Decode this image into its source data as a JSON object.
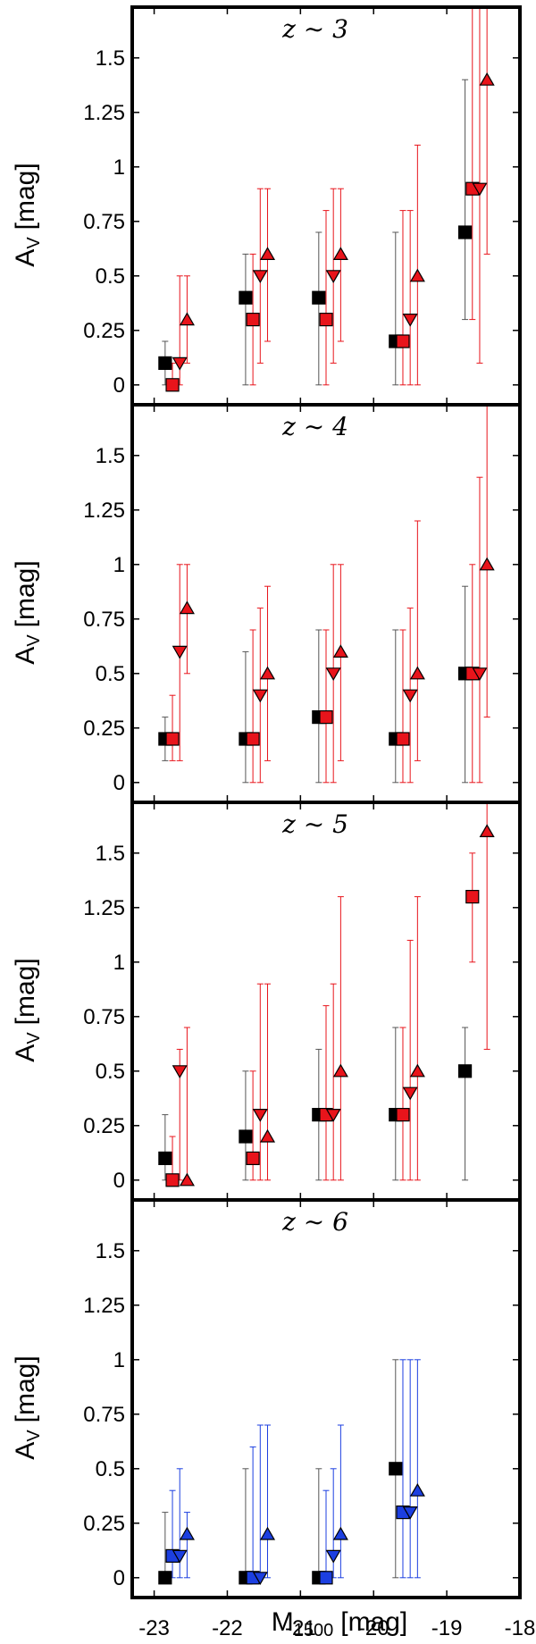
{
  "chart_data": {
    "type": "scatter",
    "x_label_main": "M",
    "x_label_sub": "1500",
    "x_label_unit": "[mag]",
    "y_label_main": "A",
    "y_label_sub": "V",
    "y_label_unit": "[mag]",
    "xlim": [
      -23.3,
      -18
    ],
    "ylim": [
      -0.05,
      1.7
    ],
    "x_ticks": [
      -23,
      -22,
      -21,
      -20,
      -19,
      -18
    ],
    "x_tick_labels": [
      "-23",
      "-22",
      "-21",
      "-20",
      "-19",
      "-18"
    ],
    "y_ticks": [
      0,
      0.25,
      0.5,
      0.75,
      1,
      1.25,
      1.5
    ],
    "y_tick_labels": [
      "0",
      "0.25",
      "0.5",
      "0.75",
      "1",
      "1.25",
      "1.5"
    ],
    "colors": {
      "black": "#000000",
      "red": "#e8141b",
      "blue": "#1c3fe0",
      "red_bar": "#e8141b",
      "blue_bar": "#1c3fe0",
      "black_bar": "#555555"
    },
    "panels": [
      {
        "label": "z ∼ 3",
        "accent": "red",
        "series": [
          {
            "marker": "square",
            "color": "black",
            "points": [
              [
                -22.85,
                0.1,
                0,
                0.2
              ],
              [
                -21.75,
                0.4,
                0,
                0.6
              ],
              [
                -20.75,
                0.4,
                0,
                0.7
              ],
              [
                -19.7,
                0.2,
                0,
                0.7
              ],
              [
                -18.75,
                0.7,
                0.3,
                1.4
              ]
            ]
          },
          {
            "marker": "square",
            "color": "red",
            "points": [
              [
                -22.75,
                0,
                0,
                0.1
              ],
              [
                -21.65,
                0.3,
                0,
                0.6
              ],
              [
                -20.65,
                0.3,
                0,
                0.8
              ],
              [
                -19.6,
                0.2,
                0,
                0.8
              ],
              [
                -18.65,
                0.9,
                0.3,
                2.0
              ]
            ]
          },
          {
            "marker": "triangle-down",
            "color": "red",
            "points": [
              [
                -22.65,
                0.1,
                0,
                0.5
              ],
              [
                -21.55,
                0.5,
                0.1,
                0.9
              ],
              [
                -20.55,
                0.5,
                0.1,
                0.9
              ],
              [
                -19.5,
                0.3,
                0,
                0.8
              ],
              [
                -18.55,
                0.9,
                0.1,
                2.0
              ]
            ]
          },
          {
            "marker": "triangle-up",
            "color": "red",
            "points": [
              [
                -22.55,
                0.3,
                0.1,
                0.5
              ],
              [
                -21.45,
                0.6,
                0.2,
                0.9
              ],
              [
                -20.45,
                0.6,
                0.2,
                0.9
              ],
              [
                -19.4,
                0.5,
                0,
                1.1
              ],
              [
                -18.45,
                1.4,
                0.6,
                2.0
              ]
            ]
          }
        ]
      },
      {
        "label": "z ∼ 4",
        "accent": "red",
        "series": [
          {
            "marker": "square",
            "color": "black",
            "points": [
              [
                -22.85,
                0.2,
                0.1,
                0.3
              ],
              [
                -21.75,
                0.2,
                0,
                0.6
              ],
              [
                -20.75,
                0.3,
                0,
                0.7
              ],
              [
                -19.7,
                0.2,
                0,
                0.7
              ],
              [
                -18.75,
                0.5,
                0,
                0.9
              ]
            ]
          },
          {
            "marker": "square",
            "color": "red",
            "points": [
              [
                -22.75,
                0.2,
                0.1,
                0.4
              ],
              [
                -21.65,
                0.2,
                0,
                0.7
              ],
              [
                -20.65,
                0.3,
                0,
                0.7
              ],
              [
                -19.6,
                0.2,
                0,
                0.7
              ],
              [
                -18.65,
                0.5,
                0,
                1.0
              ]
            ]
          },
          {
            "marker": "triangle-down",
            "color": "red",
            "points": [
              [
                -22.65,
                0.6,
                0.1,
                1.0
              ],
              [
                -21.55,
                0.4,
                0,
                0.8
              ],
              [
                -20.55,
                0.5,
                0,
                1.0
              ],
              [
                -19.5,
                0.4,
                0,
                0.8
              ],
              [
                -18.55,
                0.5,
                0,
                1.4
              ]
            ]
          },
          {
            "marker": "triangle-up",
            "color": "red",
            "points": [
              [
                -22.55,
                0.8,
                0.5,
                1.0
              ],
              [
                -21.45,
                0.5,
                0.1,
                0.9
              ],
              [
                -20.45,
                0.6,
                0.1,
                1.0
              ],
              [
                -19.4,
                0.5,
                0.1,
                1.2
              ],
              [
                -18.45,
                1.0,
                0.3,
                2.0
              ]
            ]
          }
        ]
      },
      {
        "label": "z ∼ 5",
        "accent": "red",
        "series": [
          {
            "marker": "square",
            "color": "black",
            "points": [
              [
                -22.85,
                0.1,
                0,
                0.3
              ],
              [
                -21.75,
                0.2,
                0,
                0.5
              ],
              [
                -20.75,
                0.3,
                0,
                0.6
              ],
              [
                -19.7,
                0.3,
                0,
                0.7
              ],
              [
                -18.75,
                0.5,
                0,
                0.7
              ]
            ]
          },
          {
            "marker": "square",
            "color": "red",
            "points": [
              [
                -22.75,
                0,
                0,
                0.2
              ],
              [
                -21.65,
                0.1,
                0,
                0.5
              ],
              [
                -20.65,
                0.3,
                0,
                0.8
              ],
              [
                -19.6,
                0.3,
                0,
                0.7
              ],
              [
                -18.65,
                1.3,
                1.0,
                1.5
              ]
            ]
          },
          {
            "marker": "triangle-down",
            "color": "red",
            "points": [
              [
                -22.65,
                0.5,
                0,
                0.6
              ],
              [
                -21.55,
                0.3,
                0,
                0.9
              ],
              [
                -20.55,
                0.3,
                0,
                0.9
              ],
              [
                -19.5,
                0.4,
                0,
                1.1
              ],
              [
                -18.55,
                null,
                null,
                null
              ]
            ]
          },
          {
            "marker": "triangle-up",
            "color": "red",
            "points": [
              [
                -22.55,
                0,
                0,
                0.7
              ],
              [
                -21.45,
                0.2,
                0,
                0.9
              ],
              [
                -20.45,
                0.5,
                0,
                1.3
              ],
              [
                -19.4,
                0.5,
                0,
                1.3
              ],
              [
                -18.45,
                1.6,
                0.6,
                2.0
              ]
            ]
          }
        ]
      },
      {
        "label": "z ∼ 6",
        "accent": "blue",
        "series": [
          {
            "marker": "square",
            "color": "black",
            "points": [
              [
                -22.85,
                0,
                0,
                0.3
              ],
              [
                -21.75,
                0,
                0,
                0.5
              ],
              [
                -20.75,
                0,
                0,
                0.5
              ],
              [
                -19.7,
                0.5,
                0,
                1.0
              ]
            ]
          },
          {
            "marker": "square",
            "color": "blue",
            "points": [
              [
                -22.75,
                0.1,
                0,
                0.4
              ],
              [
                -21.65,
                0,
                0,
                0.6
              ],
              [
                -20.65,
                0,
                0,
                0.4
              ],
              [
                -19.6,
                0.3,
                0,
                1.0
              ]
            ]
          },
          {
            "marker": "triangle-down",
            "color": "blue",
            "points": [
              [
                -22.65,
                0.1,
                0,
                0.5
              ],
              [
                -21.55,
                0,
                0,
                0.7
              ],
              [
                -20.55,
                0.1,
                0,
                0.5
              ],
              [
                -19.5,
                0.3,
                0,
                1.0
              ]
            ]
          },
          {
            "marker": "triangle-up",
            "color": "blue",
            "points": [
              [
                -22.55,
                0.2,
                0,
                0.3
              ],
              [
                -21.45,
                0.2,
                0,
                0.7
              ],
              [
                -20.45,
                0.2,
                0,
                0.7
              ],
              [
                -19.4,
                0.4,
                0,
                1.0
              ]
            ]
          }
        ]
      }
    ]
  }
}
